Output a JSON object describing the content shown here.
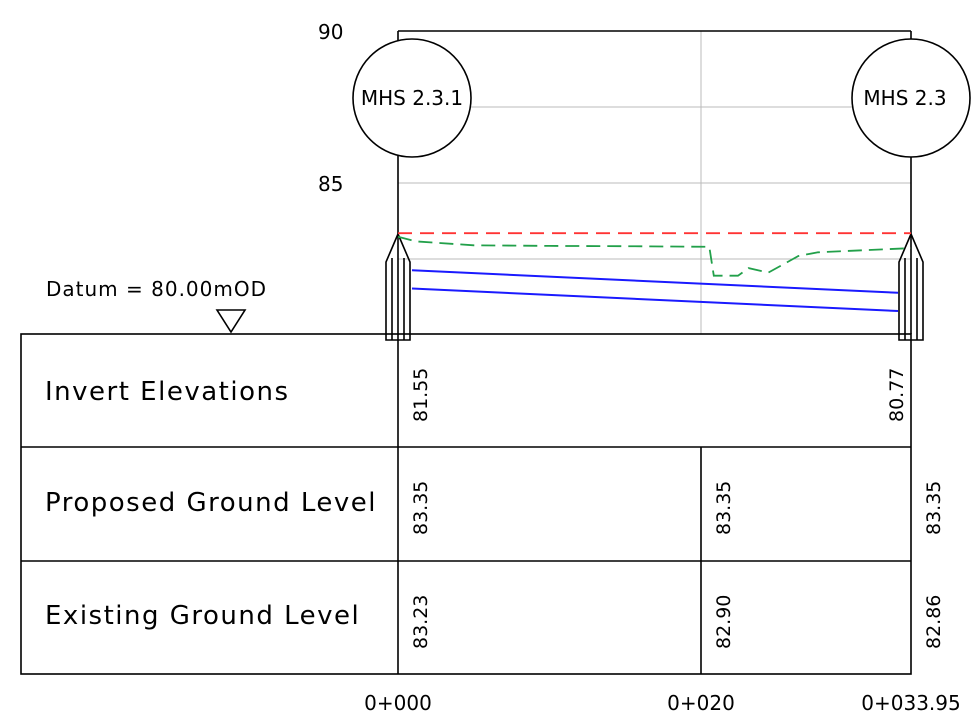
{
  "drawing": {
    "datum_label": "Datum = 80.00mOD",
    "y_axis": {
      "ticks": [
        90,
        85
      ],
      "tick_labels": [
        "90",
        "85"
      ]
    },
    "manholes": [
      {
        "label": "MHS 2.3.1"
      },
      {
        "label": "MHS 2.3"
      }
    ],
    "colors": {
      "pipe": "#1a1aff",
      "proposed_ground": "#ff3333",
      "existing_ground": "#22a04a",
      "grid": "#bbbbbb",
      "outline": "#000000"
    },
    "pipe": {
      "start_invert": 81.55,
      "end_invert": 80.77,
      "diameter_m": 0.6
    },
    "proposed_ground_level": 83.35,
    "existing_ground_profile": [
      [
        0,
        83.23
      ],
      [
        1.2,
        83.08
      ],
      [
        5,
        82.95
      ],
      [
        10,
        82.93
      ],
      [
        15,
        82.92
      ],
      [
        20.6,
        82.9
      ],
      [
        20.9,
        81.95
      ],
      [
        22.5,
        81.95
      ],
      [
        23.2,
        82.2
      ],
      [
        24.5,
        82.05
      ],
      [
        26.5,
        82.6
      ],
      [
        27.8,
        82.72
      ],
      [
        33.95,
        82.86
      ]
    ]
  },
  "table": {
    "rows": [
      {
        "label": "Invert Elevations",
        "values": [
          "81.55",
          "80.77"
        ]
      },
      {
        "label": "Proposed Ground Level",
        "values": [
          "83.35",
          "83.35",
          "83.35"
        ]
      },
      {
        "label": "Existing Ground Level",
        "values": [
          "83.23",
          "82.90",
          "82.86"
        ]
      }
    ]
  },
  "chainages": [
    "0+000",
    "0+020",
    "0+033.95"
  ]
}
